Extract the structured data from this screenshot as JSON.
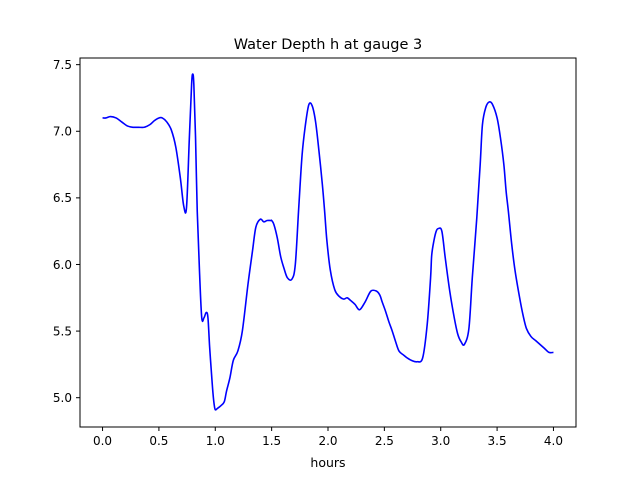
{
  "chart_data": {
    "type": "line",
    "title": "Water Depth h at gauge 3",
    "xlabel": "hours",
    "ylabel": "",
    "xlim": [
      -0.2,
      4.2
    ],
    "ylim": [
      4.78,
      7.55
    ],
    "xticks": [
      0.0,
      0.5,
      1.0,
      1.5,
      2.0,
      2.5,
      3.0,
      3.5,
      4.0
    ],
    "xtick_labels": [
      "0.0",
      "0.5",
      "1.0",
      "1.5",
      "2.0",
      "2.5",
      "3.0",
      "3.5",
      "4.0"
    ],
    "yticks": [
      5.0,
      5.5,
      6.0,
      6.5,
      7.0,
      7.5
    ],
    "ytick_labels": [
      "5.0",
      "5.5",
      "6.0",
      "6.5",
      "7.0",
      "7.5"
    ],
    "grid": false,
    "series": [
      {
        "color": "#0000ff",
        "x": [
          0.0,
          0.03,
          0.07,
          0.12,
          0.17,
          0.22,
          0.27,
          0.32,
          0.37,
          0.42,
          0.46,
          0.5,
          0.53,
          0.57,
          0.61,
          0.65,
          0.69,
          0.72,
          0.745,
          0.77,
          0.79,
          0.8,
          0.81,
          0.825,
          0.84,
          0.86,
          0.88,
          0.9,
          0.92,
          0.935,
          0.95,
          0.97,
          0.98,
          0.99,
          1.0,
          1.02,
          1.05,
          1.08,
          1.1,
          1.13,
          1.16,
          1.2,
          1.24,
          1.29,
          1.33,
          1.36,
          1.4,
          1.43,
          1.46,
          1.49,
          1.5,
          1.52,
          1.55,
          1.58,
          1.61,
          1.64,
          1.68,
          1.71,
          1.74,
          1.77,
          1.8,
          1.83,
          1.86,
          1.89,
          1.92,
          1.95,
          1.97,
          1.99,
          2.02,
          2.06,
          2.1,
          2.14,
          2.17,
          2.2,
          2.24,
          2.28,
          2.33,
          2.38,
          2.43,
          2.46,
          2.48,
          2.51,
          2.54,
          2.57,
          2.6,
          2.63,
          2.67,
          2.7,
          2.74,
          2.79,
          2.84,
          2.88,
          2.91,
          2.92,
          2.94,
          2.96,
          2.98,
          3.01,
          3.04,
          3.08,
          3.12,
          3.15,
          3.18,
          3.21,
          3.25,
          3.28,
          3.32,
          3.35,
          3.37,
          3.4,
          3.43,
          3.46,
          3.5,
          3.53,
          3.56,
          3.58,
          3.6,
          3.63,
          3.66,
          3.7,
          3.73,
          3.76,
          3.8,
          3.84,
          3.88,
          3.92,
          3.96,
          4.0
        ],
        "y": [
          7.1,
          7.1,
          7.11,
          7.1,
          7.07,
          7.04,
          7.03,
          7.03,
          7.03,
          7.05,
          7.08,
          7.1,
          7.1,
          7.07,
          7.01,
          6.88,
          6.65,
          6.44,
          6.43,
          6.95,
          7.35,
          7.43,
          7.35,
          6.95,
          6.4,
          5.95,
          5.6,
          5.6,
          5.64,
          5.6,
          5.38,
          5.14,
          5.03,
          4.95,
          4.91,
          4.92,
          4.94,
          4.97,
          5.05,
          5.15,
          5.28,
          5.35,
          5.5,
          5.85,
          6.1,
          6.28,
          6.34,
          6.32,
          6.33,
          6.33,
          6.33,
          6.3,
          6.2,
          6.06,
          5.97,
          5.9,
          5.89,
          6.0,
          6.42,
          6.82,
          7.05,
          7.2,
          7.19,
          7.07,
          6.85,
          6.6,
          6.4,
          6.18,
          5.96,
          5.81,
          5.76,
          5.74,
          5.75,
          5.73,
          5.7,
          5.66,
          5.72,
          5.8,
          5.8,
          5.77,
          5.72,
          5.65,
          5.57,
          5.5,
          5.42,
          5.35,
          5.32,
          5.3,
          5.28,
          5.27,
          5.3,
          5.55,
          5.9,
          6.07,
          6.18,
          6.25,
          6.27,
          6.25,
          6.05,
          5.8,
          5.6,
          5.48,
          5.42,
          5.4,
          5.52,
          5.9,
          6.35,
          6.75,
          7.05,
          7.18,
          7.22,
          7.2,
          7.1,
          6.95,
          6.75,
          6.55,
          6.4,
          6.15,
          5.95,
          5.75,
          5.62,
          5.52,
          5.46,
          5.43,
          5.4,
          5.37,
          5.34,
          5.34
        ]
      }
    ]
  }
}
